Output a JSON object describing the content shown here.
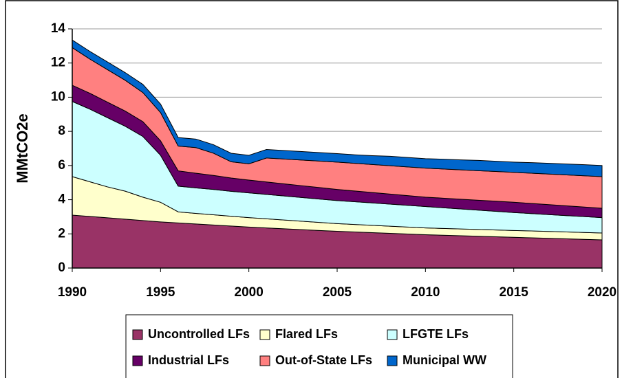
{
  "chart_data": {
    "type": "stacked-area",
    "y_label": "MMtCO2e",
    "x": [
      1990,
      1991,
      1992,
      1993,
      1994,
      1995,
      1996,
      1997,
      1998,
      1999,
      2000,
      2001,
      2002,
      2003,
      2004,
      2005,
      2006,
      2007,
      2008,
      2009,
      2010,
      2011,
      2012,
      2013,
      2014,
      2015,
      2016,
      2017,
      2018,
      2019,
      2020
    ],
    "xlim": [
      1990,
      2020
    ],
    "xticks": [
      1990,
      1995,
      2000,
      2005,
      2010,
      2015,
      2020
    ],
    "ylim": [
      0,
      14
    ],
    "yticks": [
      0,
      2,
      4,
      6,
      8,
      10,
      12,
      14
    ],
    "grid": true,
    "legend": "bottom",
    "series": [
      {
        "name": "Uncontrolled LFs",
        "color": "#993366",
        "values": [
          3.1,
          3.02,
          2.94,
          2.86,
          2.78,
          2.7,
          2.64,
          2.58,
          2.52,
          2.46,
          2.4,
          2.35,
          2.3,
          2.25,
          2.2,
          2.15,
          2.11,
          2.07,
          2.03,
          1.99,
          1.95,
          1.92,
          1.89,
          1.86,
          1.83,
          1.8,
          1.77,
          1.74,
          1.71,
          1.68,
          1.65
        ]
      },
      {
        "name": "Flared LFs",
        "color": "#ffffcc",
        "values": [
          2.25,
          2.03,
          1.81,
          1.64,
          1.37,
          1.15,
          0.65,
          0.62,
          0.6,
          0.57,
          0.55,
          0.53,
          0.51,
          0.49,
          0.47,
          0.45,
          0.44,
          0.43,
          0.42,
          0.41,
          0.4,
          0.4,
          0.4,
          0.4,
          0.4,
          0.4,
          0.4,
          0.4,
          0.4,
          0.4,
          0.4
        ]
      },
      {
        "name": "LFGTE LFs",
        "color": "#ccffff",
        "values": [
          4.4,
          4.25,
          4.05,
          3.8,
          3.55,
          2.75,
          1.5,
          1.49,
          1.48,
          1.46,
          1.45,
          1.43,
          1.41,
          1.39,
          1.37,
          1.35,
          1.33,
          1.31,
          1.29,
          1.27,
          1.25,
          1.21,
          1.17,
          1.13,
          1.09,
          1.05,
          1.02,
          0.99,
          0.96,
          0.93,
          0.9
        ]
      },
      {
        "name": "Industrial LFs",
        "color": "#660066",
        "values": [
          0.95,
          0.93,
          0.91,
          0.89,
          0.87,
          0.85,
          0.9,
          0.86,
          0.82,
          0.78,
          0.75,
          0.73,
          0.71,
          0.69,
          0.67,
          0.65,
          0.63,
          0.61,
          0.59,
          0.57,
          0.55,
          0.56,
          0.57,
          0.58,
          0.59,
          0.6,
          0.59,
          0.58,
          0.57,
          0.56,
          0.55
        ]
      },
      {
        "name": "Out-of-State LFs",
        "color": "#ff8080",
        "values": [
          2.2,
          2.0,
          1.9,
          1.8,
          1.7,
          1.65,
          1.45,
          1.5,
          1.3,
          0.95,
          0.95,
          1.4,
          1.45,
          1.5,
          1.55,
          1.6,
          1.62,
          1.64,
          1.66,
          1.68,
          1.7,
          1.71,
          1.72,
          1.73,
          1.74,
          1.75,
          1.77,
          1.79,
          1.81,
          1.83,
          1.85
        ]
      },
      {
        "name": "Municipal WW",
        "color": "#0066cc",
        "values": [
          0.45,
          0.45,
          0.45,
          0.45,
          0.48,
          0.5,
          0.5,
          0.5,
          0.5,
          0.5,
          0.5,
          0.5,
          0.5,
          0.5,
          0.5,
          0.5,
          0.5,
          0.52,
          0.55,
          0.55,
          0.55,
          0.57,
          0.58,
          0.6,
          0.6,
          0.6,
          0.62,
          0.63,
          0.64,
          0.65,
          0.65
        ]
      }
    ]
  }
}
